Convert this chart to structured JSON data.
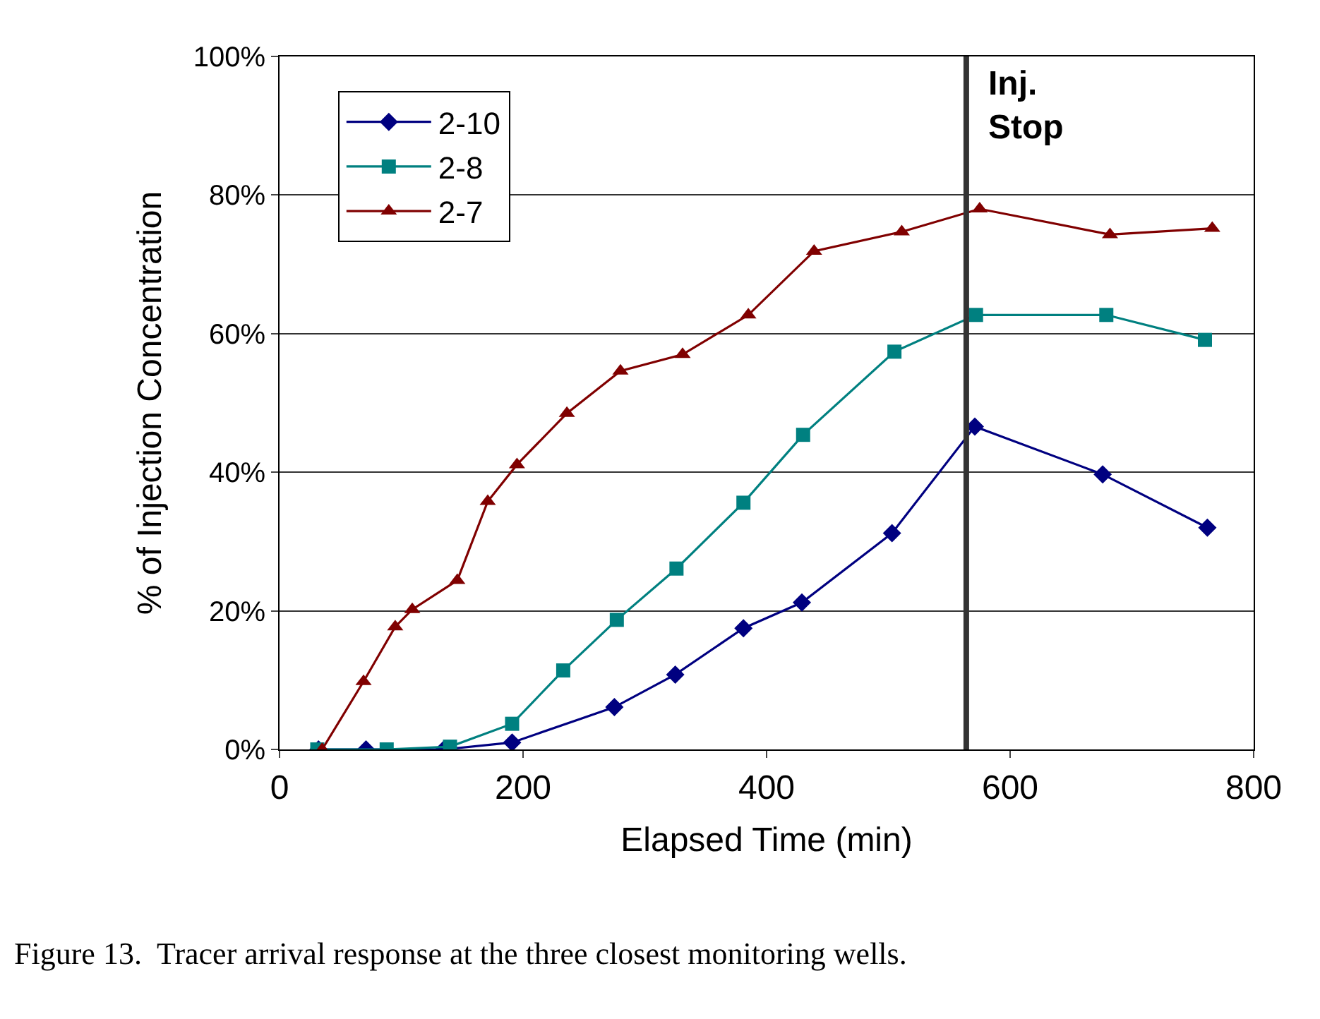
{
  "chart_data": {
    "type": "line",
    "xlabel": "Elapsed Time (min)",
    "ylabel": "% of Injection Concentration",
    "xlim": [
      0,
      800
    ],
    "xticks": [
      0,
      200,
      400,
      600,
      800
    ],
    "ylim": [
      0,
      100
    ],
    "yticks": [
      {
        "value": 0,
        "label": "0%"
      },
      {
        "value": 20,
        "label": "20%"
      },
      {
        "value": 40,
        "label": "40%"
      },
      {
        "value": 60,
        "label": "60%"
      },
      {
        "value": 80,
        "label": "80%"
      },
      {
        "value": 100,
        "label": "100%"
      }
    ],
    "grid": "y",
    "legend": "top left",
    "line_style": "solid",
    "series": [
      {
        "name": "2-10",
        "color": "#000080",
        "marker": "diamond",
        "x": [
          32,
          71,
          135,
          191,
          275,
          325,
          381,
          429,
          503,
          571,
          676,
          762
        ],
        "values": [
          0,
          0,
          0,
          1,
          6.1,
          10.8,
          17.5,
          21.2,
          31.2,
          46.6,
          39.7,
          32
        ]
      },
      {
        "name": "2-8",
        "color": "#008080",
        "marker": "square",
        "x": [
          31,
          88,
          140,
          191,
          233,
          277,
          326,
          381,
          430,
          505,
          572,
          679,
          760
        ],
        "values": [
          0,
          0,
          0.4,
          3.7,
          11.4,
          18.7,
          26.1,
          35.6,
          45.4,
          57.4,
          62.7,
          62.7,
          59.1
        ]
      },
      {
        "name": "2-7",
        "color": "#800000",
        "marker": "triangle",
        "x": [
          35,
          69,
          95,
          109,
          146,
          171,
          195,
          236,
          280,
          331,
          385,
          439,
          511,
          575,
          682,
          766
        ],
        "values": [
          0,
          9.8,
          17.7,
          20.2,
          24.4,
          35.8,
          41.1,
          48.5,
          54.6,
          57.0,
          62.7,
          71.9,
          74.7,
          78.0,
          74.3,
          75.2
        ]
      }
    ],
    "ref_lines": [
      {
        "axis": "x",
        "value": 564,
        "label": "Inj.\nStop",
        "color": "#333333"
      }
    ],
    "annotations": [
      "Figure 13.  Tracer arrival response at the three closest monitoring wells."
    ]
  }
}
